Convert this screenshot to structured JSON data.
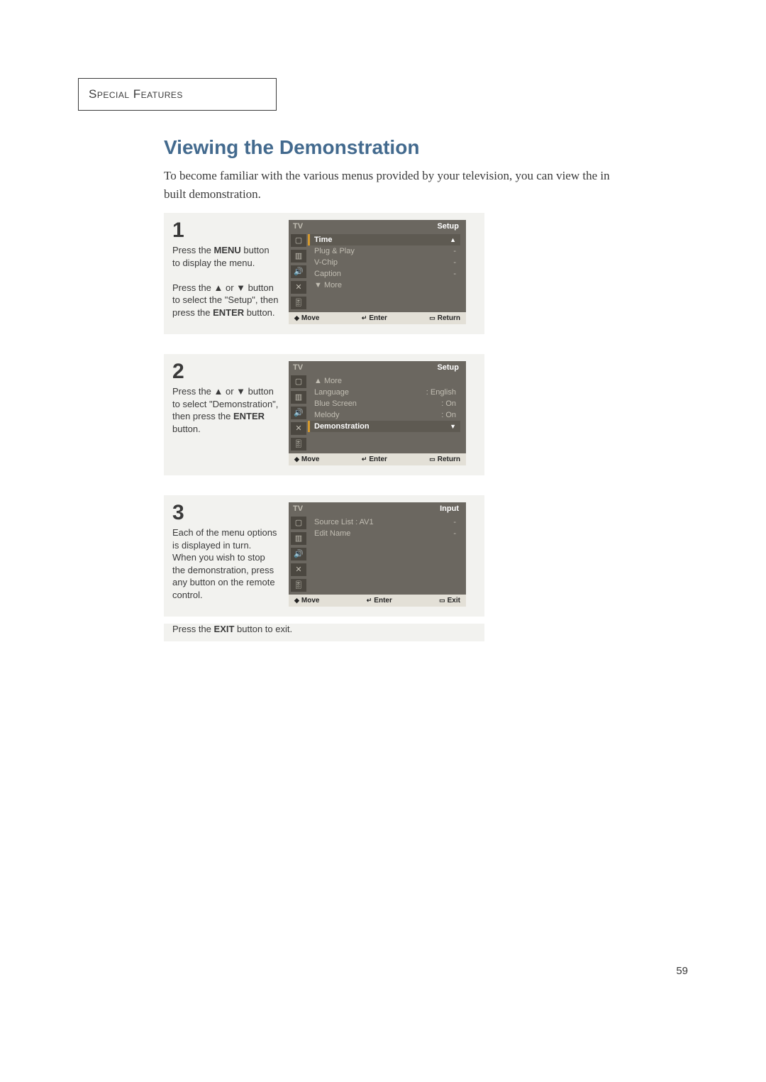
{
  "section_label": "Special Features",
  "title": "Viewing the Demonstration",
  "intro": "To become familiar with the various menus provided by your television, you can view the in built demonstration.",
  "page_number": "59",
  "tv_label": "TV",
  "icons": [
    "▢",
    "▥",
    "🔊",
    "✕",
    "🎚"
  ],
  "footer": {
    "move": "Move",
    "enter": "Enter",
    "return": "Return",
    "exit": "Exit",
    "move_icon": "◆",
    "enter_icon": "↵",
    "return_icon": "▭",
    "exit_icon": "▭"
  },
  "up_caret": "▲",
  "down_caret": "▼",
  "steps": [
    {
      "num": "1",
      "text_html": "Press the <b>MENU</b> button to display the menu.<br><br>Press the ▲ or ▼ button to select the \"Setup\", then press the <b>ENTER</b> button.",
      "header_right": "Setup",
      "items": [
        {
          "label": "Time",
          "value": "",
          "highlight": true,
          "caret": "up"
        },
        {
          "label": "Plug & Play",
          "value": "-",
          "highlight": false
        },
        {
          "label": "V-Chip",
          "value": "-",
          "highlight": false
        },
        {
          "label": "Caption",
          "value": "-",
          "highlight": false
        },
        {
          "label": "▼ More",
          "value": "",
          "highlight": false
        }
      ],
      "footer_right": "Return"
    },
    {
      "num": "2",
      "text_html": "Press the ▲ or ▼ button to select \"Demonstration\", then press the <b>ENTER</b> button.",
      "header_right": "Setup",
      "items": [
        {
          "label": "▲ More",
          "value": "",
          "highlight": false
        },
        {
          "label": "Language",
          "value": ": English",
          "highlight": false
        },
        {
          "label": "Blue Screen",
          "value": ": On",
          "highlight": false,
          "dash": true
        },
        {
          "label": "Melody",
          "value": ": On",
          "highlight": false,
          "dash": true
        },
        {
          "label": "Demonstration",
          "value": "",
          "highlight": true,
          "caret": "down"
        }
      ],
      "footer_right": "Return"
    },
    {
      "num": "3",
      "text_html": "Each of the menu options is displayed in turn.<br>When you wish to stop the demonstration, press any button on the remote control.",
      "exit_note": "Press the <b>EXIT</b> button to exit.",
      "header_right": "Input",
      "items": [
        {
          "label": "Source List  :  AV1",
          "value": "-",
          "highlight": false
        },
        {
          "label": "Edit Name",
          "value": "-",
          "highlight": false
        }
      ],
      "footer_right": "Exit"
    }
  ]
}
